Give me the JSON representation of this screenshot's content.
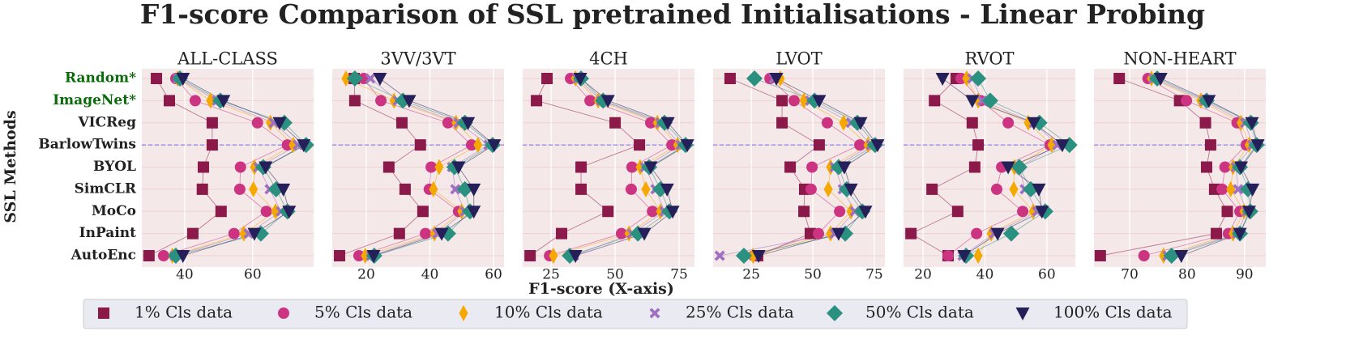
{
  "chart_data": {
    "type": "scatter",
    "title": "F1-score Comparison of SSL pretrained Initialisations - Linear Probing",
    "xlabel": "F1-score (X-axis)",
    "ylabel": "SSL Methods",
    "categories": [
      "Random*",
      "ImageNet*",
      "VICReg",
      "BarlowTwins",
      "BYOL",
      "SimCLR",
      "MoCo",
      "InPaint",
      "AutoEnc"
    ],
    "category_colors": [
      "#0a6b0a",
      "#0a6b0a",
      "#222222",
      "#222222",
      "#222222",
      "#222222",
      "#222222",
      "#222222",
      "#222222"
    ],
    "highlight": "BarlowTwins",
    "grid": true,
    "legend": "bottom",
    "series": [
      {
        "name": "1% Cls data",
        "color": "#8b1a4a",
        "marker": "square"
      },
      {
        "name": "5% Cls data",
        "color": "#cc3380",
        "marker": "circle"
      },
      {
        "name": "10% Cls data",
        "color": "#f5a800",
        "marker": "thin_diamond"
      },
      {
        "name": "25% Cls data",
        "color": "#a070c0",
        "marker": "x"
      },
      {
        "name": "50% Cls data",
        "color": "#2a9080",
        "marker": "diamond"
      },
      {
        "name": "100% Cls data",
        "color": "#25205a",
        "marker": "triangle_down"
      }
    ],
    "panels": [
      {
        "title": "ALL-CLASS",
        "xlim": [
          27.4,
          77.9
        ],
        "xticks": [
          40,
          60
        ],
        "series": [
          {
            "values": [
              31.7,
              35.5,
              48.1,
              48.1,
              45.5,
              45.2,
              50.7,
              42.4,
              29.5
            ]
          },
          {
            "values": [
              37.4,
              43.1,
              61.4,
              70.2,
              56.4,
              56.2,
              64,
              54.5,
              33.8
            ]
          },
          {
            "values": [
              37.9,
              47.6,
              65.2,
              71.9,
              60.5,
              60.2,
              66.7,
              57.4,
              36.4
            ]
          },
          {
            "values": [
              38,
              49.5,
              66.2,
              73.3,
              61.7,
              65,
              68.3,
              58.8,
              37.1
            ]
          },
          {
            "values": [
              38.6,
              50.5,
              69.3,
              75.7,
              63.1,
              66.9,
              70.2,
              62.4,
              37.4
            ]
          },
          {
            "values": [
              39.5,
              51.4,
              67.9,
              75,
              63.8,
              69,
              70.7,
              60.5,
              39.5
            ]
          }
        ]
      },
      {
        "title": "3VV/3VT",
        "xlim": [
          9.3,
          63.3
        ],
        "xticks": [
          20,
          40,
          60
        ],
        "series": [
          {
            "values": [
              16.2,
              16.4,
              31.2,
              37,
              27.1,
              32.2,
              37.8,
              30.4,
              11.6
            ]
          },
          {
            "values": [
              19.2,
              24.6,
              45.7,
              53.1,
              40.4,
              39.8,
              49,
              38.6,
              17.7
            ]
          },
          {
            "values": [
              13.6,
              28.7,
              48.2,
              55.1,
              42.9,
              41.1,
              50,
              41.4,
              19.7
            ]
          },
          {
            "values": [
              21.3,
              29.9,
              49,
              58.4,
              47,
              48,
              51,
              42.4,
              21.5
            ]
          },
          {
            "values": [
              16.4,
              31.5,
              51,
              59.7,
              47.7,
              51,
              52.6,
              45.7,
              22.5
            ]
          },
          {
            "values": [
              24.3,
              33.5,
              52,
              60.2,
              49,
              53.8,
              53.8,
              43.7,
              22.3
            ]
          }
        ]
      },
      {
        "title": "4CH",
        "xlim": [
          13.9,
          81
        ],
        "xticks": [
          25,
          50,
          75
        ],
        "series": [
          {
            "values": [
              23.4,
              19.3,
              50,
              59.5,
              36.7,
              36.7,
              47.2,
              29.1,
              16.8
            ]
          },
          {
            "values": [
              32.6,
              40.2,
              63.9,
              72.2,
              56.6,
              56.3,
              64.6,
              52.5,
              24.4
            ]
          },
          {
            "values": [
              34.5,
              43.4,
              66.5,
              74.4,
              59.8,
              62,
              67.7,
              55.4,
              25.9
            ]
          },
          {
            "values": [
              35.4,
              44.6,
              67.7,
              75.6,
              61.7,
              65.8,
              69.3,
              56.6,
              33.9
            ]
          },
          {
            "values": [
              36.7,
              45.3,
              69.3,
              77.5,
              63.3,
              67.7,
              71.2,
              58.9,
              32.3
            ]
          },
          {
            "values": [
              36.4,
              47.2,
              70.6,
              78.2,
              63.9,
              70.3,
              72.5,
              61.4,
              34.5
            ]
          }
        ]
      },
      {
        "title": "LVOT",
        "xlim": [
          9.5,
          79.3
        ],
        "xticks": [
          25,
          50,
          75
        ],
        "series": [
          {
            "values": [
              16.4,
              37.5,
              37.5,
              52.6,
              40.8,
              46.7,
              46.4,
              49,
              27.6
            ]
          },
          {
            "values": [
              32.6,
              42.4,
              55.9,
              69.1,
              49.7,
              49.3,
              60.9,
              52.3,
              26
            ]
          },
          {
            "values": [
              36.8,
              46.4,
              62.5,
              72.4,
              57.2,
              56.3,
              65.5,
              57.2,
              25.7
            ]
          },
          {
            "values": [
              34.2,
              49,
              65.5,
              73.7,
              58.9,
              62.2,
              67.1,
              58.9,
              12.2
            ]
          },
          {
            "values": [
              26.3,
              50.7,
              68.1,
              75.3,
              60.5,
              63.8,
              70.1,
              63.2,
              22
            ]
          },
          {
            "values": [
              35.2,
              52.6,
              69.4,
              76.3,
              62.8,
              65.5,
              71.4,
              60.5,
              28
            ]
          }
        ]
      },
      {
        "title": "RVOT",
        "xlim": [
          13.7,
          69.2
        ],
        "xticks": [
          20,
          40,
          60
        ],
        "series": [
          {
            "values": [
              30.7,
              23.7,
              35.9,
              37.8,
              36.7,
              22.9,
              31.2,
              16.1,
              28.1
            ]
          },
          {
            "values": [
              32.3,
              38.6,
              47.5,
              61,
              45.4,
              43.8,
              52.2,
              37.3,
              28.1
            ]
          },
          {
            "values": [
              34.1,
              37.8,
              54,
              61.6,
              49.5,
              49.3,
              55.6,
              42,
              37.8
            ]
          },
          {
            "values": [
              35.9,
              39.1,
              55.8,
              63.4,
              51.1,
              52.9,
              56.9,
              43,
              32.8
            ]
          },
          {
            "values": [
              37.8,
              41.7,
              57.6,
              67.3,
              51.1,
              54.8,
              59.5,
              48.5,
              33.9
            ]
          },
          {
            "values": [
              26.3,
              35.9,
              55.8,
              65,
              47.5,
              57.4,
              58.4,
              44.1,
              33.3
            ]
          }
        ]
      },
      {
        "title": "NON-HEART",
        "xlim": [
          63.8,
          93.7
        ],
        "xticks": [
          70,
          80,
          90
        ],
        "series": [
          {
            "values": [
              68.2,
              78.7,
              83.2,
              84.1,
              83.4,
              84.8,
              87,
              85.1,
              64.9
            ]
          },
          {
            "values": [
              73.2,
              79.9,
              88.7,
              90.3,
              86.6,
              86.1,
              89.2,
              87.2,
              72.5
            ]
          },
          {
            "values": [
              73.8,
              82.4,
              89.4,
              90.8,
              88,
              87.6,
              89.9,
              88,
              75.9
            ]
          },
          {
            "values": [
              74.2,
              83,
              90.1,
              91.4,
              88.5,
              88.9,
              90.4,
              88.7,
              76.6
            ]
          },
          {
            "values": [
              74.8,
              83.4,
              91.1,
              92.1,
              89.2,
              90.6,
              91,
              89.2,
              77.3
            ]
          },
          {
            "values": [
              75.4,
              83.8,
              91.3,
              92.3,
              89.4,
              91.4,
              90.8,
              89.2,
              79
            ]
          }
        ]
      }
    ]
  }
}
